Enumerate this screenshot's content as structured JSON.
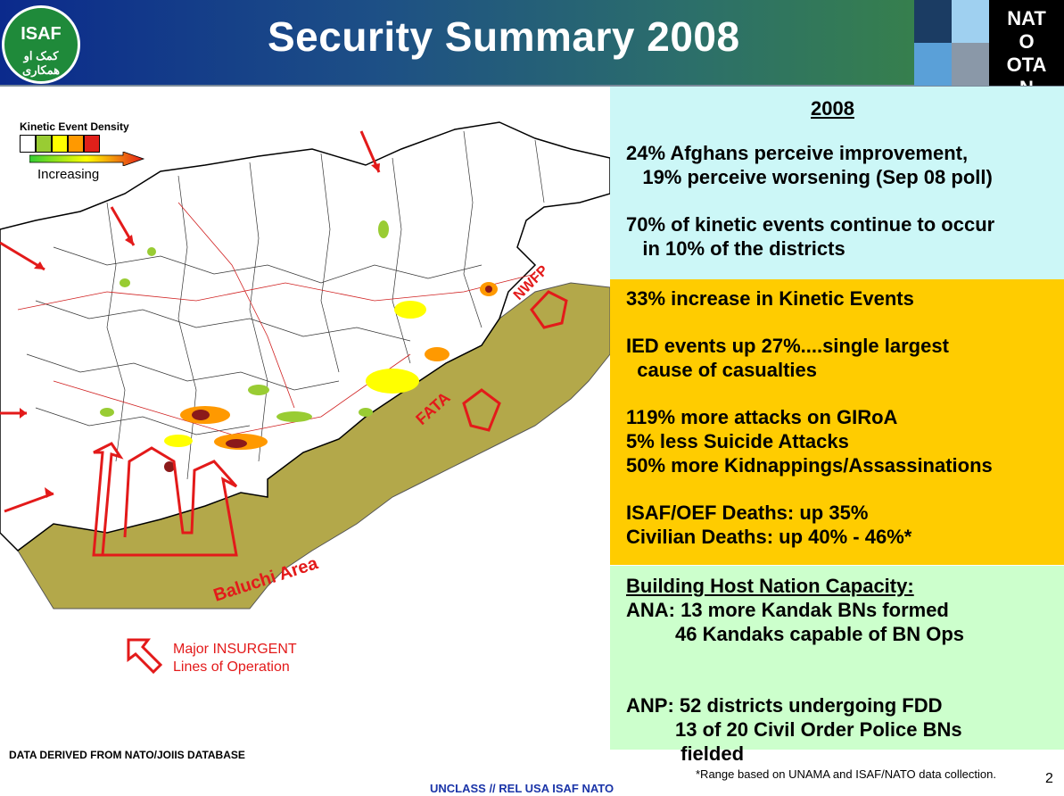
{
  "header": {
    "logo_text": "ISAF",
    "logo_subtext": "کمک او همکاری",
    "title": "Security Summary 2008",
    "nato_badge": "NAT\nO\nOTA\nN"
  },
  "map": {
    "legend_title": "Kinetic Event Density",
    "legend_increasing": "Increasing",
    "legend_colors": [
      "#ffffff",
      "#99cc33",
      "#ffff00",
      "#ff9900",
      "#e0201a"
    ],
    "label_nwfp": "NWFP",
    "label_fata": "FATA",
    "label_baluchi": "Baluchi Area",
    "insurgent_legend": "Major INSURGENT\nLines of Operation"
  },
  "footer": {
    "source": "DATA DERIVED FROM NATO/JOIIS DATABASE",
    "classification": "UNCLASS // REL USA ISAF NATO",
    "page_number": "2",
    "footnote": "*Range based on UNAMA and ISAF/NATO data collection."
  },
  "panel_blue": {
    "heading": "2008",
    "line1": "24% Afghans perceive improvement,",
    "line2": "   19% perceive worsening (Sep 08 poll)",
    "line3": "70% of kinetic events continue to occur",
    "line4": "   in 10% of the districts"
  },
  "panel_orange": {
    "line1": "33% increase in Kinetic Events",
    "line2": "IED events up 27%....single largest",
    "line3": "  cause of casualties",
    "line4": "119% more attacks on GIRoA",
    "line5": "5% less Suicide Attacks",
    "line6": "50% more Kidnappings/Assassinations",
    "line7": "ISAF/OEF Deaths: up 35%",
    "line8": "Civilian Deaths: up 40% - 46%*"
  },
  "panel_green": {
    "heading": "Building Host Nation Capacity:",
    "ana1": "ANA: 13 more Kandak BNs formed",
    "ana2": "         46 Kandaks capable of BN Ops",
    "anp1": "ANP: 52 districts undergoing FDD",
    "anp2": "         13 of 20 Civil Order Police BNs",
    "anp3": "          fielded"
  },
  "colors": {
    "blue_panel": "#ccf7f7",
    "orange_panel": "#ffcc00",
    "green_panel": "#ccffcc",
    "pakistan_fill": "#b3a84a",
    "arrow_red": "#e31a1a"
  }
}
